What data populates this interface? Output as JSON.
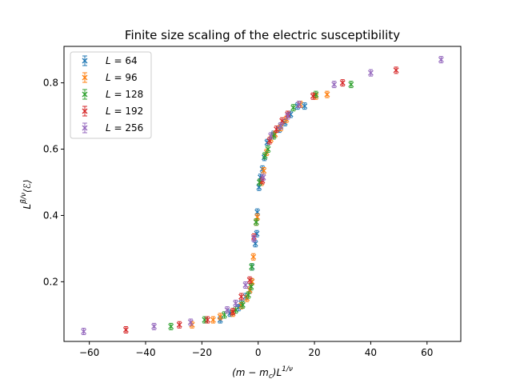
{
  "chart_data": {
    "type": "scatter",
    "title": "Finite size scaling of the electric susceptibility",
    "xlabel": "(m − m_c)L^{1/ν}",
    "ylabel": "L^{β/ν}⟨ℰ⟩",
    "xlim": [
      -69,
      72
    ],
    "ylim": [
      0.02,
      0.91
    ],
    "xticks": [
      -60,
      -40,
      -20,
      0,
      20,
      40,
      60
    ],
    "yticks": [
      0.2,
      0.4,
      0.6,
      0.8
    ],
    "grid": false,
    "legend_position": "top-left",
    "marker": "x with vertical error bars",
    "series": [
      {
        "label_var": "L",
        "label_eq": "=",
        "label_value": "64",
        "color": "#1f77b4",
        "points": [
          [
            -13.5,
            0.085
          ],
          [
            -10,
            0.105
          ],
          [
            -7,
            0.122
          ],
          [
            -6,
            0.135
          ],
          [
            -4.5,
            0.155
          ],
          [
            -3,
            0.175
          ],
          [
            -2.3,
            0.2
          ],
          [
            -2.2,
            0.245
          ],
          [
            -1,
            0.315
          ],
          [
            -0.5,
            0.345
          ],
          [
            -0.3,
            0.41
          ],
          [
            0.3,
            0.485
          ],
          [
            0.8,
            0.515
          ],
          [
            1.5,
            0.54
          ],
          [
            2.2,
            0.575
          ],
          [
            3.2,
            0.62
          ],
          [
            5.5,
            0.645
          ],
          [
            7.5,
            0.66
          ],
          [
            9.5,
            0.68
          ],
          [
            11.5,
            0.705
          ],
          [
            14,
            0.73
          ],
          [
            16.5,
            0.73
          ]
        ]
      },
      {
        "label_var": "L",
        "label_eq": "=",
        "label_value": "96",
        "color": "#ff7f0e",
        "points": [
          [
            -23.5,
            0.07
          ],
          [
            -16,
            0.085
          ],
          [
            -13.5,
            0.095
          ],
          [
            -9,
            0.105
          ],
          [
            -6,
            0.128
          ],
          [
            -4,
            0.15
          ],
          [
            -3,
            0.175
          ],
          [
            -2.2,
            0.2
          ],
          [
            -1.7,
            0.275
          ],
          [
            -0.7,
            0.38
          ],
          [
            -0.3,
            0.395
          ],
          [
            1.2,
            0.5
          ],
          [
            2,
            0.535
          ],
          [
            3,
            0.59
          ],
          [
            4.5,
            0.63
          ],
          [
            6,
            0.645
          ],
          [
            8,
            0.665
          ],
          [
            10,
            0.69
          ],
          [
            15,
            0.735
          ],
          [
            20.5,
            0.76
          ],
          [
            24.5,
            0.765
          ]
        ]
      },
      {
        "label_var": "L",
        "label_eq": "=",
        "label_value": "128",
        "color": "#2ca02c",
        "points": [
          [
            -31,
            0.065
          ],
          [
            -19,
            0.085
          ],
          [
            -12,
            0.1
          ],
          [
            -8,
            0.115
          ],
          [
            -5.5,
            0.13
          ],
          [
            -3.5,
            0.16
          ],
          [
            -2.5,
            0.185
          ],
          [
            -2.3,
            0.245
          ],
          [
            -0.7,
            0.38
          ],
          [
            0.5,
            0.5
          ],
          [
            2.4,
            0.58
          ],
          [
            3.5,
            0.6
          ],
          [
            5.5,
            0.64
          ],
          [
            8,
            0.67
          ],
          [
            12.5,
            0.725
          ],
          [
            20.5,
            0.765
          ],
          [
            33,
            0.795
          ]
        ]
      },
      {
        "label_var": "L",
        "label_eq": "=",
        "label_value": "192",
        "color": "#d62728",
        "points": [
          [
            -47,
            0.055
          ],
          [
            -28,
            0.07
          ],
          [
            -18,
            0.085
          ],
          [
            -9,
            0.11
          ],
          [
            -6,
            0.155
          ],
          [
            -3,
            0.205
          ],
          [
            -1.5,
            0.335
          ],
          [
            1.5,
            0.505
          ],
          [
            4,
            0.625
          ],
          [
            6.5,
            0.66
          ],
          [
            8.5,
            0.685
          ],
          [
            10.5,
            0.705
          ],
          [
            19.5,
            0.76
          ],
          [
            30,
            0.8
          ],
          [
            49,
            0.838
          ]
        ]
      },
      {
        "label_var": "L",
        "label_eq": "=",
        "label_value": "256",
        "color": "#9467bd",
        "points": [
          [
            -62,
            0.05
          ],
          [
            -37,
            0.065
          ],
          [
            -24,
            0.078
          ],
          [
            -11,
            0.115
          ],
          [
            -8,
            0.135
          ],
          [
            -4.5,
            0.19
          ],
          [
            -1.5,
            0.33
          ],
          [
            1.8,
            0.515
          ],
          [
            4.5,
            0.64
          ],
          [
            8,
            0.67
          ],
          [
            10.5,
            0.7
          ],
          [
            14.5,
            0.735
          ],
          [
            27,
            0.795
          ],
          [
            40,
            0.83
          ],
          [
            65,
            0.87
          ]
        ]
      }
    ]
  }
}
